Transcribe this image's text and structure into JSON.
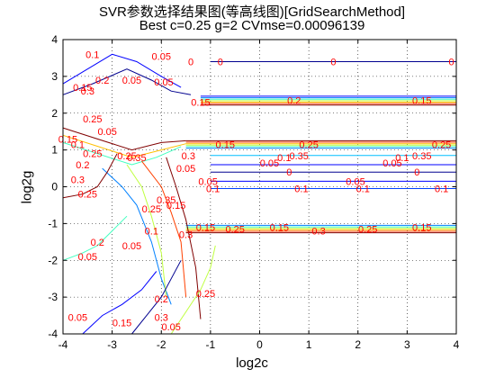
{
  "chart_data": {
    "type": "contour",
    "title": "SVR参数选择结果图(等高线图)[GridSearchMethod]",
    "subtitle": "Best c=0.25 g=2 CVmse=0.00096139",
    "xlabel": "log2c",
    "ylabel": "log2g",
    "xlim": [
      -4,
      4
    ],
    "ylim": [
      -4,
      4
    ],
    "x_ticks": [
      -4,
      -3,
      -2,
      -1,
      0,
      1,
      2,
      3,
      4
    ],
    "y_ticks": [
      -4,
      -3,
      -2,
      -1,
      0,
      1,
      2,
      3,
      4
    ],
    "grid": "dotted",
    "label_color": "#ff0000",
    "contours": [
      {
        "level": "0",
        "color": "#00008f",
        "x": [
          -1,
          4
        ],
        "y": [
          3.4,
          3.4
        ]
      },
      {
        "level": "0.3",
        "color": "#800000",
        "x": [
          -1.2,
          4
        ],
        "y": [
          2.22,
          2.22
        ]
      },
      {
        "level": "0.25",
        "color": "#ff4000",
        "x": [
          -1.2,
          4
        ],
        "y": [
          2.26,
          2.26
        ]
      },
      {
        "level": "0.2",
        "color": "#ffbf00",
        "x": [
          -1.2,
          4
        ],
        "y": [
          2.3,
          2.3
        ]
      },
      {
        "level": "0.15",
        "color": "#bfff40",
        "x": [
          -1.2,
          4
        ],
        "y": [
          2.34,
          2.34
        ]
      },
      {
        "level": "0.1",
        "color": "#40ffbf",
        "x": [
          -1.2,
          4
        ],
        "y": [
          2.38,
          2.38
        ]
      },
      {
        "level": "0.05",
        "color": "#0080ff",
        "x": [
          -1.2,
          4
        ],
        "y": [
          2.42,
          2.42
        ]
      },
      {
        "level": "0.35",
        "color": "#0000ff",
        "x": [
          -1.2,
          4
        ],
        "y": [
          2.46,
          2.46
        ]
      },
      {
        "level": "0.3",
        "color": "#800000",
        "x": [
          -1.5,
          4
        ],
        "y": [
          1.25,
          1.25
        ]
      },
      {
        "level": "0.25",
        "color": "#ff4000",
        "x": [
          -1.5,
          4
        ],
        "y": [
          1.21,
          1.21
        ]
      },
      {
        "level": "0.2",
        "color": "#ffbf00",
        "x": [
          -1.5,
          4
        ],
        "y": [
          1.17,
          1.17
        ]
      },
      {
        "level": "0.15",
        "color": "#bfff40",
        "x": [
          -1.5,
          4
        ],
        "y": [
          1.13,
          1.13
        ]
      },
      {
        "level": "0.1",
        "color": "#40ffbf",
        "x": [
          -1.5,
          4
        ],
        "y": [
          1.09,
          1.09
        ]
      },
      {
        "level": "0.05",
        "color": "#0080ff",
        "x": [
          -1.5,
          4
        ],
        "y": [
          1.05,
          1.05
        ]
      },
      {
        "level": "0.1",
        "color": "#00bfff",
        "x": [
          -1,
          4
        ],
        "y": [
          0.85,
          0.85
        ]
      },
      {
        "level": "0.05",
        "color": "#0000ff",
        "x": [
          -1,
          4
        ],
        "y": [
          0.6,
          0.6
        ]
      },
      {
        "level": "0",
        "color": "#00008f",
        "x": [
          -1,
          4
        ],
        "y": [
          0.4,
          0.4
        ]
      },
      {
        "level": "0.05",
        "color": "#0000ff",
        "x": [
          -1,
          4
        ],
        "y": [
          0.15,
          0.15
        ]
      },
      {
        "level": "0.1",
        "color": "#0040ff",
        "x": [
          -1,
          4
        ],
        "y": [
          -0.05,
          -0.05
        ]
      },
      {
        "level": "0.3",
        "color": "#800000",
        "x": [
          -1.5,
          4
        ],
        "y": [
          -1.25,
          -1.25
        ]
      },
      {
        "level": "0.25",
        "color": "#ff4000",
        "x": [
          -1.5,
          4
        ],
        "y": [
          -1.21,
          -1.21
        ]
      },
      {
        "level": "0.2",
        "color": "#ffbf00",
        "x": [
          -1.5,
          4
        ],
        "y": [
          -1.17,
          -1.17
        ]
      },
      {
        "level": "0.15",
        "color": "#bfff40",
        "x": [
          -1.5,
          4
        ],
        "y": [
          -1.13,
          -1.13
        ]
      },
      {
        "level": "0.1",
        "color": "#40ffbf",
        "x": [
          -1.5,
          4
        ],
        "y": [
          -1.09,
          -1.09
        ]
      },
      {
        "level": "0.05",
        "color": "#0080ff",
        "x": [
          -1.5,
          4
        ],
        "y": [
          -1.05,
          -1.05
        ]
      },
      {
        "level": "0",
        "color": "#00008f",
        "x": [
          -4,
          -3.4,
          -2.7,
          -2.2,
          -1.8,
          -1.4
        ],
        "y": [
          2.5,
          2.8,
          3.2,
          2.9,
          2.6,
          2.5
        ]
      },
      {
        "level": "0.05",
        "color": "#0000ff",
        "x": [
          -4,
          -3.5,
          -3,
          -2.5,
          -2,
          -1.6
        ],
        "y": [
          2.8,
          3.2,
          3.6,
          3.4,
          3.0,
          2.7
        ]
      },
      {
        "level": "0.3",
        "color": "#800000",
        "x": [
          -4,
          -3.3,
          -2.6,
          -2,
          -1.5
        ],
        "y": [
          1.6,
          1.3,
          1.0,
          1.2,
          1.25
        ]
      },
      {
        "level": "0.2",
        "color": "#ffbf00",
        "x": [
          -4,
          -3.3,
          -2.6,
          -2,
          -1.5
        ],
        "y": [
          1.4,
          1.1,
          0.8,
          1.0,
          1.17
        ]
      },
      {
        "level": "0.1",
        "color": "#40ffbf",
        "x": [
          -4,
          -3.3,
          -2.6,
          -2.1,
          -1.6
        ],
        "y": [
          1.2,
          0.9,
          0.6,
          0.8,
          1.09
        ]
      },
      {
        "level": "0.05",
        "color": "#0080ff",
        "x": [
          -3.2,
          -2.8,
          -2.5,
          -2.2,
          -2,
          -1.8
        ],
        "y": [
          0.5,
          0.0,
          -0.5,
          -1.5,
          -2.5,
          -3.2
        ]
      },
      {
        "level": "0.15",
        "color": "#bfff40",
        "x": [
          -2.7,
          -2.4,
          -2.2,
          -2.0,
          -1.9
        ],
        "y": [
          0.6,
          0.0,
          -0.8,
          -1.8,
          -3.0
        ]
      },
      {
        "level": "0.25",
        "color": "#ff4000",
        "x": [
          -2.4,
          -2.0,
          -1.8,
          -1.6,
          -1.5
        ],
        "y": [
          0.7,
          0.0,
          -0.7,
          -1.5,
          -3.0
        ]
      },
      {
        "level": "0.3",
        "color": "#800000",
        "x": [
          -1.9,
          -1.7,
          -1.5,
          -1.3,
          -1.2
        ],
        "y": [
          0.8,
          0.0,
          -0.9,
          -2.2,
          -3.6
        ]
      },
      {
        "level": "0.1",
        "color": "#40ffbf",
        "x": [
          -4,
          -3.6,
          -3.3,
          -3.0,
          -2.7
        ],
        "y": [
          -2.0,
          -1.8,
          -1.6,
          -1.2,
          -0.8
        ]
      },
      {
        "level": "0.3",
        "color": "#800000",
        "x": [
          -4,
          -3.6,
          -3.3,
          -3.1,
          -2.9
        ],
        "y": [
          -0.3,
          -0.2,
          0.0,
          0.4,
          0.9
        ]
      },
      {
        "level": "0.05",
        "color": "#0000ff",
        "x": [
          -3.6,
          -3.2,
          -2.8,
          -2.4,
          -2.1
        ],
        "y": [
          -4,
          -3.5,
          -3.2,
          -2.8,
          -2.3
        ]
      },
      {
        "level": "0",
        "color": "#00008f",
        "x": [
          -2.6,
          -2.3,
          -2.0,
          -1.8,
          -1.6
        ],
        "y": [
          -4,
          -3.5,
          -3.0,
          -2.5,
          -2.0
        ]
      },
      {
        "level": "0.15",
        "color": "#bfff40",
        "x": [
          -1.8,
          -1.5,
          -1.2,
          -1.0,
          -0.9
        ],
        "y": [
          -4,
          -3.4,
          -2.8,
          -2.2,
          -1.6
        ]
      }
    ],
    "contour_labels": [
      {
        "text": "0",
        "x": -0.8,
        "y": 3.4
      },
      {
        "text": "0",
        "x": 1.5,
        "y": 3.4
      },
      {
        "text": "0",
        "x": 3.9,
        "y": 3.4
      },
      {
        "text": "0.05",
        "x": -2.0,
        "y": 3.55
      },
      {
        "text": "0.05",
        "x": -1.95,
        "y": 2.85
      },
      {
        "text": "0",
        "x": -1.4,
        "y": 3.4
      },
      {
        "text": "0.15",
        "x": -1.2,
        "y": 2.3
      },
      {
        "text": "0.2",
        "x": 0.7,
        "y": 2.35
      },
      {
        "text": "0.15",
        "x": 3.3,
        "y": 2.35
      },
      {
        "text": "0.25",
        "x": -2.7,
        "y": 0.85
      },
      {
        "text": "0.35",
        "x": -2.5,
        "y": 0.8
      },
      {
        "text": "0.3",
        "x": -1.45,
        "y": 0.85
      },
      {
        "text": "0.05",
        "x": -1.5,
        "y": 0.5
      },
      {
        "text": "0.35",
        "x": 0.8,
        "y": 0.85
      },
      {
        "text": "0.35",
        "x": 3.3,
        "y": 0.85
      },
      {
        "text": "0.15",
        "x": -0.7,
        "y": 1.15
      },
      {
        "text": "0.25",
        "x": 1.0,
        "y": 1.15
      },
      {
        "text": "0.25",
        "x": 3.7,
        "y": 1.15
      },
      {
        "text": "0.1",
        "x": 0.5,
        "y": 0.8
      },
      {
        "text": "0.1",
        "x": 2.9,
        "y": 0.8
      },
      {
        "text": "0.05",
        "x": 0.2,
        "y": 0.65
      },
      {
        "text": "0.05",
        "x": 2.7,
        "y": 0.65
      },
      {
        "text": "0",
        "x": 0.6,
        "y": 0.4
      },
      {
        "text": "0",
        "x": 3.2,
        "y": 0.4
      },
      {
        "text": "0.05",
        "x": -1.05,
        "y": 0.15
      },
      {
        "text": "0.05",
        "x": 1.95,
        "y": 0.15
      },
      {
        "text": "0.1",
        "x": -0.95,
        "y": -0.05
      },
      {
        "text": "0.1",
        "x": 0.85,
        "y": -0.05
      },
      {
        "text": "0.1",
        "x": 2.1,
        "y": -0.05
      },
      {
        "text": "0.1",
        "x": 3.7,
        "y": -0.05
      },
      {
        "text": "0.15",
        "x": -1.1,
        "y": -1.1
      },
      {
        "text": "0.15",
        "x": 0.4,
        "y": -1.1
      },
      {
        "text": "0.15",
        "x": 3.3,
        "y": -1.1
      },
      {
        "text": "0.25",
        "x": -0.5,
        "y": -1.15
      },
      {
        "text": "0.3",
        "x": 1.2,
        "y": -1.2
      },
      {
        "text": "0.25",
        "x": 2.2,
        "y": -1.15
      },
      {
        "text": "0.25",
        "x": -3.4,
        "y": 0.9
      },
      {
        "text": "0.2",
        "x": -3.6,
        "y": 0.6
      },
      {
        "text": "0.3",
        "x": -3.7,
        "y": 0.2
      },
      {
        "text": "0.25",
        "x": -3.5,
        "y": -0.2
      },
      {
        "text": "0.2",
        "x": -3.3,
        "y": -1.5
      },
      {
        "text": "0.05",
        "x": -3.5,
        "y": -1.9
      },
      {
        "text": "0.1",
        "x": -2.2,
        "y": -1.2
      },
      {
        "text": "0.25",
        "x": -2.2,
        "y": -0.6
      },
      {
        "text": "0.35",
        "x": -1.9,
        "y": -0.35
      },
      {
        "text": "0.15",
        "x": -1.7,
        "y": -0.5
      },
      {
        "text": "0.3",
        "x": -1.5,
        "y": -1.3
      },
      {
        "text": "0.05",
        "x": -2.6,
        "y": -1.6
      },
      {
        "text": "0.05",
        "x": -3.7,
        "y": -3.55
      },
      {
        "text": "0.15",
        "x": -2.8,
        "y": -3.7
      },
      {
        "text": "0.3",
        "x": -2.0,
        "y": -3.55
      },
      {
        "text": "0.2",
        "x": -2.0,
        "y": -3.05
      },
      {
        "text": "0.25",
        "x": -1.1,
        "y": -2.9
      },
      {
        "text": "0.05",
        "x": -1.8,
        "y": -3.8
      },
      {
        "text": "0.15",
        "x": -3.9,
        "y": 1.3
      },
      {
        "text": "0.1",
        "x": -3.7,
        "y": 1.15
      },
      {
        "text": "0.05",
        "x": -3.1,
        "y": 1.5
      },
      {
        "text": "0.25",
        "x": -3.4,
        "y": 1.85
      },
      {
        "text": "0.15",
        "x": -3.6,
        "y": 2.7
      },
      {
        "text": "0.3",
        "x": -3.5,
        "y": 2.6
      },
      {
        "text": "0.2",
        "x": -3.2,
        "y": 2.9
      },
      {
        "text": "0.1",
        "x": -3.4,
        "y": 3.6
      },
      {
        "text": "0.05",
        "x": -2.6,
        "y": 2.9
      }
    ]
  }
}
